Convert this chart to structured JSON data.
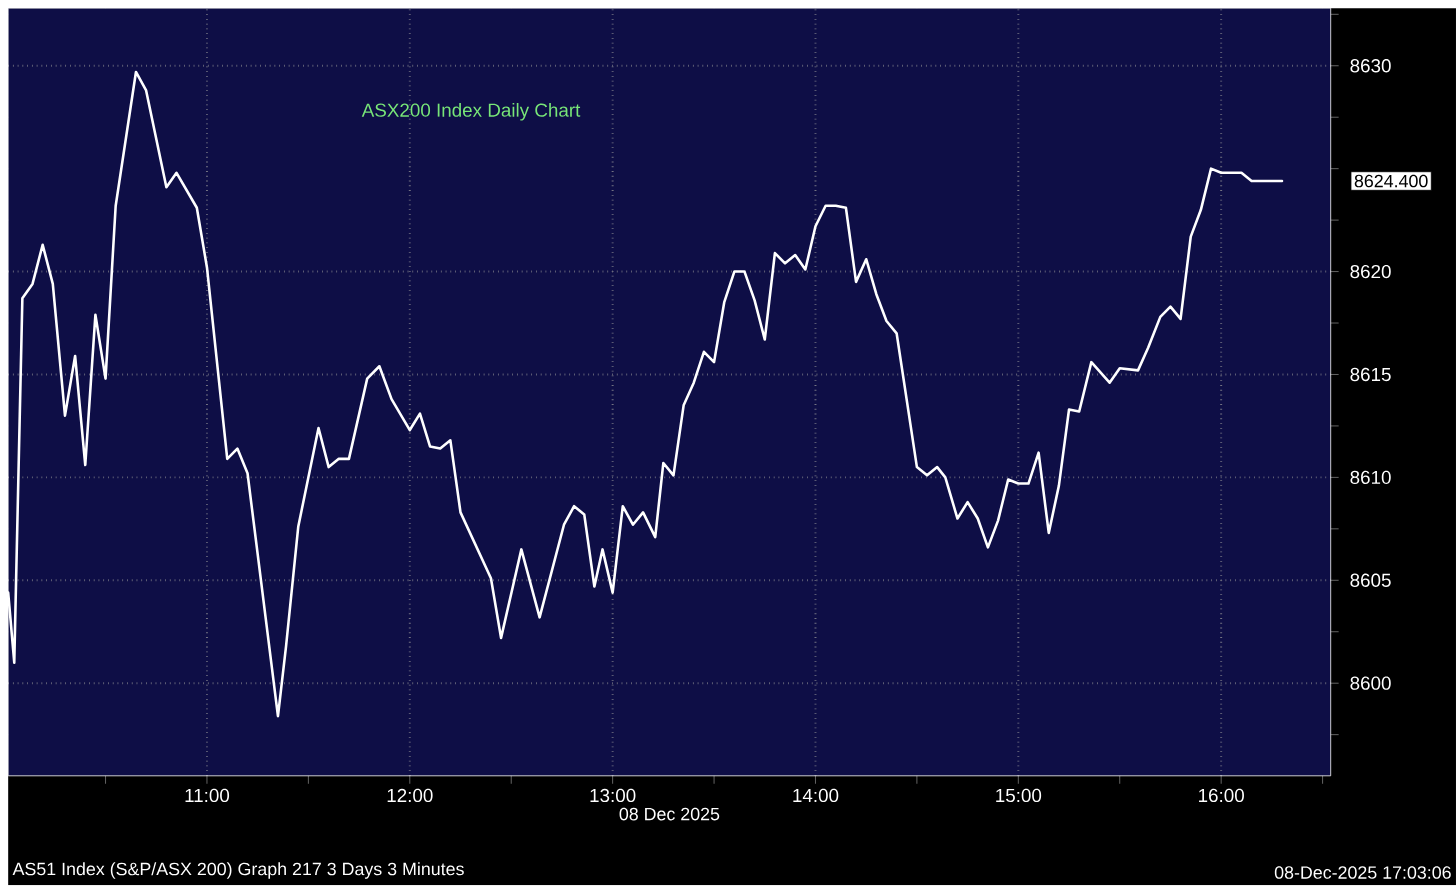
{
  "chart_data": {
    "type": "line",
    "title": "ASX200 Index Daily Chart",
    "xlabel": "08 Dec 2025",
    "annotations": [
      "AS51 Index (S&P/ASX 200) Graph 217 3 Days 3 Minutes",
      "08-Dec-2025 17:03:06",
      "8624.400"
    ],
    "xlim": [
      10.02,
      16.54
    ],
    "ylim": [
      8595.5,
      8632.8
    ],
    "xticks": [
      {
        "value": 10.5,
        "label": null
      },
      {
        "value": 11,
        "label": "11:00"
      },
      {
        "value": 11.5,
        "label": null
      },
      {
        "value": 12,
        "label": "12:00"
      },
      {
        "value": 12.5,
        "label": null
      },
      {
        "value": 13,
        "label": "13:00"
      },
      {
        "value": 13.5,
        "label": null
      },
      {
        "value": 14,
        "label": "14:00"
      },
      {
        "value": 14.5,
        "label": null
      },
      {
        "value": 15,
        "label": "15:00"
      },
      {
        "value": 15.5,
        "label": null
      },
      {
        "value": 16,
        "label": "16:00"
      },
      {
        "value": 16.5,
        "label": null
      }
    ],
    "yticks": [
      {
        "value": 8597.5,
        "label": null
      },
      8600,
      {
        "value": 8602.5,
        "label": null
      },
      8605,
      {
        "value": 8607.5,
        "label": null
      },
      8610,
      {
        "value": 8612.5,
        "label": null
      },
      8615,
      {
        "value": 8617.5,
        "label": null
      },
      8620,
      {
        "value": 8622.5,
        "label": null
      },
      {
        "value": 8625,
        "label": null
      },
      {
        "value": 8627.5,
        "label": null
      },
      8630,
      {
        "value": 8632.5,
        "label": null
      }
    ],
    "grid": true,
    "marker": "none",
    "line_style": "solid",
    "series": [
      {
        "color": "#ffffff",
        "x": [
          10.02,
          10.05,
          10.09,
          10.14,
          10.19,
          10.24,
          10.3,
          10.35,
          10.4,
          10.45,
          10.5,
          10.55,
          10.65,
          10.7,
          10.8,
          10.85,
          10.95,
          11.0,
          11.1,
          11.15,
          11.2,
          11.35,
          11.39,
          11.45,
          11.55,
          11.6,
          11.65,
          11.7,
          11.79,
          11.85,
          11.91,
          12.0,
          12.05,
          12.1,
          12.15,
          12.2,
          12.25,
          12.4,
          12.45,
          12.55,
          12.64,
          12.76,
          12.81,
          12.86,
          12.91,
          12.95,
          13.0,
          13.05,
          13.1,
          13.15,
          13.21,
          13.25,
          13.3,
          13.35,
          13.4,
          13.45,
          13.5,
          13.55,
          13.6,
          13.65,
          13.7,
          13.75,
          13.8,
          13.85,
          13.9,
          13.95,
          14.0,
          14.05,
          14.1,
          14.15,
          14.2,
          14.25,
          14.3,
          14.35,
          14.4,
          14.5,
          14.55,
          14.6,
          14.64,
          14.7,
          14.75,
          14.8,
          14.85,
          14.9,
          14.95,
          15.0,
          15.05,
          15.1,
          15.15,
          15.2,
          15.25,
          15.3,
          15.36,
          15.45,
          15.5,
          15.59,
          15.64,
          15.7,
          15.75,
          15.8,
          15.85,
          15.9,
          15.95,
          16.0,
          16.1,
          16.15,
          16.3
        ],
        "values": [
          8604.4,
          8601.0,
          8618.7,
          8619.4,
          8621.3,
          8619.4,
          8613.0,
          8615.9,
          8610.6,
          8617.9,
          8614.8,
          8623.2,
          8629.7,
          8628.8,
          8624.1,
          8624.8,
          8623.1,
          8620.2,
          8610.9,
          8611.4,
          8610.2,
          8598.4,
          8601.8,
          8607.6,
          8612.4,
          8610.5,
          8610.9,
          8610.9,
          8614.8,
          8615.4,
          8613.8,
          8612.3,
          8613.1,
          8611.5,
          8611.4,
          8611.8,
          8608.3,
          8605.1,
          8602.2,
          8606.5,
          8603.2,
          8607.7,
          8608.6,
          8608.2,
          8604.7,
          8606.5,
          8604.4,
          8608.6,
          8607.7,
          8608.3,
          8607.1,
          8610.7,
          8610.1,
          8613.5,
          8614.6,
          8616.1,
          8615.6,
          8618.5,
          8620.0,
          8620.0,
          8618.6,
          8616.7,
          8620.9,
          8620.4,
          8620.8,
          8620.1,
          8622.2,
          8623.2,
          8623.2,
          8623.1,
          8619.5,
          8620.6,
          8618.9,
          8617.6,
          8617.0,
          8610.5,
          8610.1,
          8610.5,
          8610.0,
          8608.0,
          8608.8,
          8608.0,
          8606.6,
          8607.9,
          8609.9,
          8609.7,
          8609.7,
          8611.2,
          8607.3,
          8609.6,
          8613.3,
          8613.2,
          8615.6,
          8614.6,
          8615.3,
          8615.2,
          8616.3,
          8617.8,
          8618.3,
          8617.7,
          8621.7,
          8623.0,
          8625.0,
          8624.8,
          8624.8,
          8624.4,
          8624.4
        ]
      }
    ]
  }
}
